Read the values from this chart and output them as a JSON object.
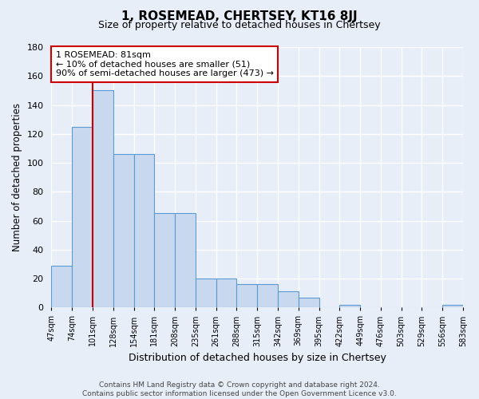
{
  "title": "1, ROSEMEAD, CHERTSEY, KT16 8JJ",
  "subtitle": "Size of property relative to detached houses in Chertsey",
  "xlabel": "Distribution of detached houses by size in Chertsey",
  "ylabel": "Number of detached properties",
  "bar_values": [
    29,
    125,
    150,
    106,
    106,
    65,
    65,
    20,
    20,
    16,
    16,
    11,
    7,
    0,
    2,
    0,
    0,
    0,
    0,
    2
  ],
  "bar_labels": [
    "47sqm",
    "74sqm",
    "101sqm",
    "128sqm",
    "154sqm",
    "181sqm",
    "208sqm",
    "235sqm",
    "261sqm",
    "288sqm",
    "315sqm",
    "342sqm",
    "369sqm",
    "395sqm",
    "422sqm",
    "449sqm",
    "476sqm",
    "503sqm",
    "529sqm",
    "556sqm",
    "583sqm"
  ],
  "bar_color": "#c8d8ee",
  "bar_edge_color": "#5b9bd5",
  "red_line_x": 1.5,
  "annotation_text": "1 ROSEMEAD: 81sqm\n← 10% of detached houses are smaller (51)\n90% of semi-detached houses are larger (473) →",
  "annotation_box_color": "#ffffff",
  "annotation_box_edge": "#cc0000",
  "ylim": [
    0,
    180
  ],
  "yticks": [
    0,
    20,
    40,
    60,
    80,
    100,
    120,
    140,
    160,
    180
  ],
  "footer1": "Contains HM Land Registry data © Crown copyright and database right 2024.",
  "footer2": "Contains public sector information licensed under the Open Government Licence v3.0.",
  "bg_color": "#e8eef8",
  "plot_bg_color": "#e8eef8",
  "grid_color": "#ffffff"
}
